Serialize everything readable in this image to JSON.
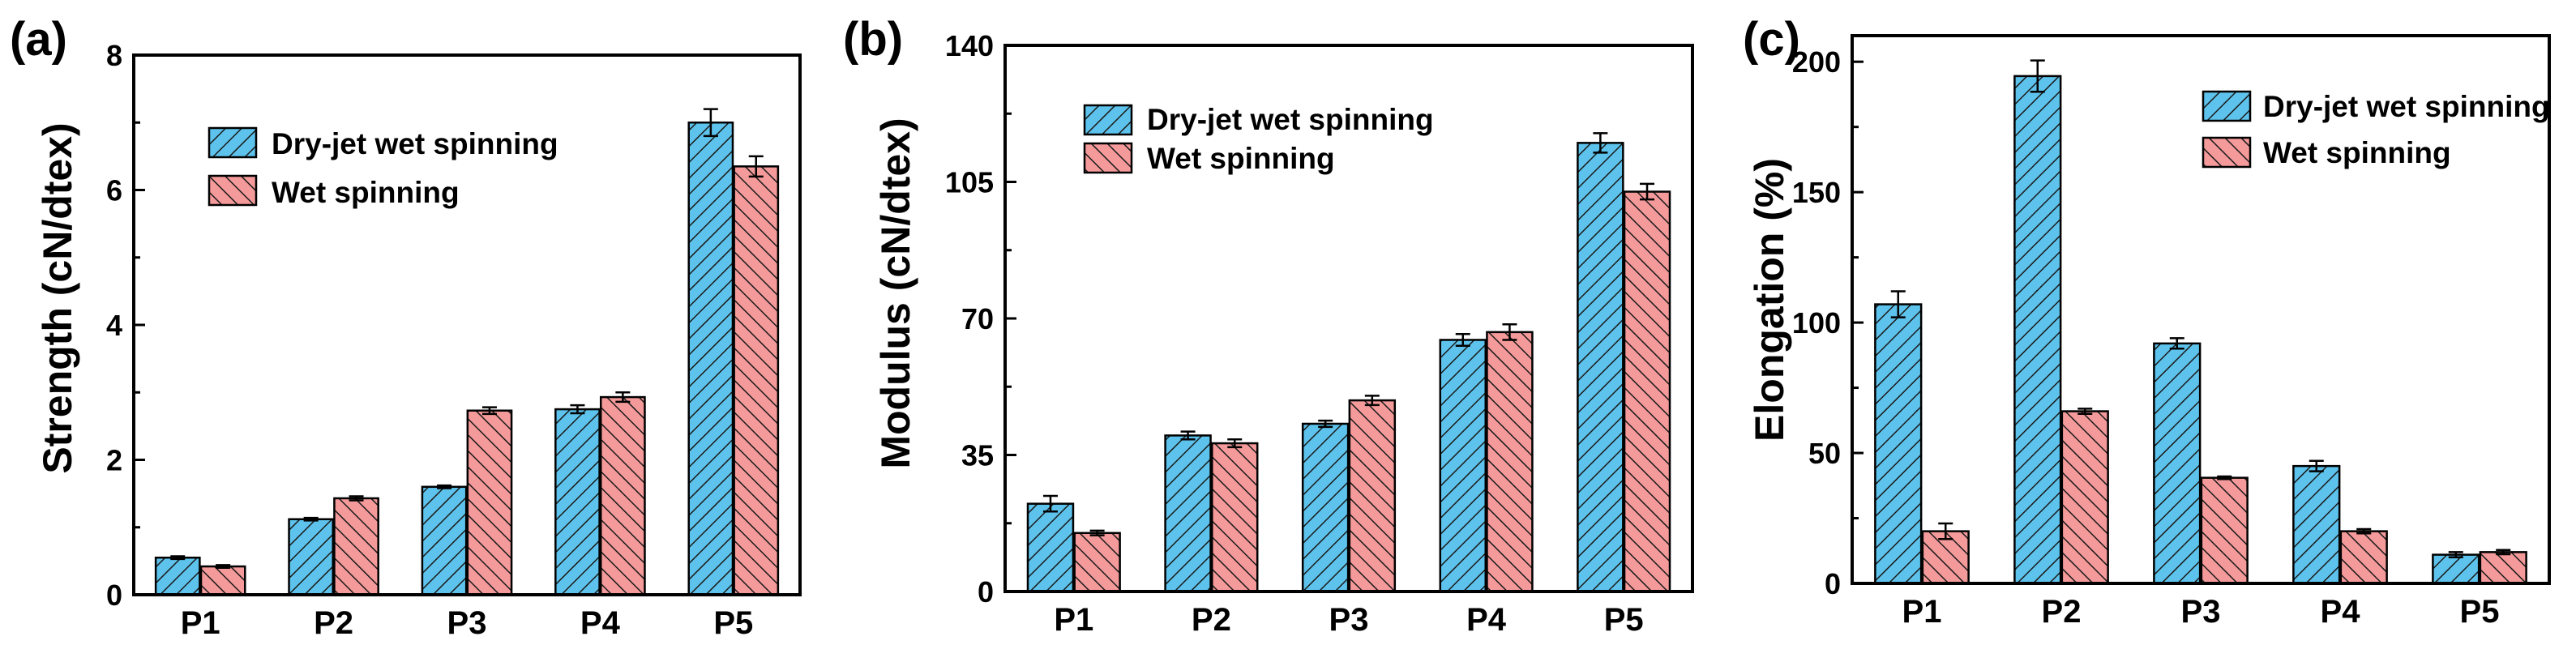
{
  "colors": {
    "dry_jet": "#5ec3ec",
    "wet": "#f59a9a",
    "hatch": "#1a1a1a",
    "axis": "#000000"
  },
  "chart_data": [
    {
      "type": "bar",
      "panel_label": "(a)",
      "ylabel": "Strength (cN/dtex)",
      "xlabel": "",
      "categories": [
        "P1",
        "P2",
        "P3",
        "P4",
        "P5"
      ],
      "ylim": [
        0,
        8
      ],
      "yticks": [
        0,
        2,
        4,
        6,
        8
      ],
      "legend_position": "top-left",
      "series": [
        {
          "name": "Dry-jet wet spinning",
          "key": "dry_jet",
          "values": [
            0.55,
            1.12,
            1.6,
            2.75,
            7.0
          ],
          "errors": [
            0.02,
            0.02,
            0.02,
            0.06,
            0.2
          ]
        },
        {
          "name": "Wet spinning",
          "key": "wet",
          "values": [
            0.42,
            1.43,
            2.73,
            2.93,
            6.35
          ],
          "errors": [
            0.02,
            0.03,
            0.05,
            0.07,
            0.15
          ]
        }
      ]
    },
    {
      "type": "bar",
      "panel_label": "(b)",
      "ylabel": "Modulus (cN/dtex)",
      "xlabel": "",
      "categories": [
        "P1",
        "P2",
        "P3",
        "P4",
        "P5"
      ],
      "ylim": [
        0,
        140
      ],
      "yticks": [
        0,
        35,
        70,
        105,
        140
      ],
      "legend_position": "top-left",
      "series": [
        {
          "name": "Dry-jet wet spinning",
          "key": "dry_jet",
          "values": [
            22.5,
            40.0,
            43.0,
            64.5,
            115.0
          ],
          "errors": [
            2.0,
            1.0,
            0.8,
            1.5,
            2.5
          ]
        },
        {
          "name": "Wet spinning",
          "key": "wet",
          "values": [
            15.0,
            38.0,
            49.0,
            66.5,
            102.5
          ],
          "errors": [
            0.6,
            1.0,
            1.2,
            2.0,
            2.0
          ]
        }
      ]
    },
    {
      "type": "bar",
      "panel_label": "(c)",
      "ylabel": "Elongation (%)",
      "xlabel": "",
      "categories": [
        "P1",
        "P2",
        "P3",
        "P4",
        "P5"
      ],
      "ylim": [
        0,
        210
      ],
      "yticks": [
        0,
        50,
        100,
        150,
        200
      ],
      "legend_position": "top-right",
      "series": [
        {
          "name": "Dry-jet wet spinning",
          "key": "dry_jet",
          "values": [
            107,
            194.5,
            92,
            45,
            11
          ],
          "errors": [
            5,
            6,
            2,
            2,
            1
          ]
        },
        {
          "name": "Wet spinning",
          "key": "wet",
          "values": [
            20,
            66,
            40.5,
            20,
            12
          ],
          "errors": [
            3,
            1,
            0.5,
            0.8,
            0.8
          ]
        }
      ]
    }
  ]
}
